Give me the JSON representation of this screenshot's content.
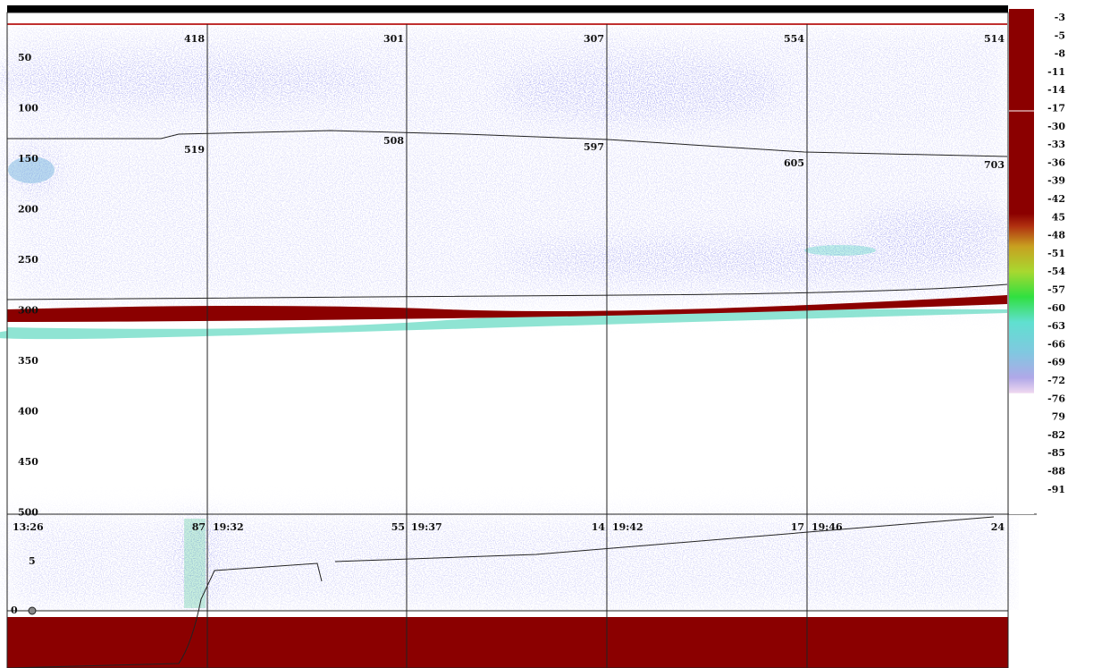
{
  "depth_axis": {
    "labels": [
      50,
      100,
      150,
      200,
      250,
      300,
      350,
      400,
      450,
      500
    ]
  },
  "color_scale": {
    "labels": [
      "-3",
      "-5",
      "-8",
      "-11",
      "-14",
      "-17",
      "-30",
      "-33",
      "-36",
      "-39",
      "-42",
      "45",
      "-48",
      "-51",
      "-54",
      "-57",
      "-60",
      "-63",
      "-66",
      "-69",
      "-72",
      "-76",
      "79",
      "-82",
      "-85",
      "-88",
      "-91"
    ]
  },
  "upper_panel": {
    "top_marks": [
      418,
      301,
      307,
      554,
      514
    ],
    "layer_marks": [
      519,
      508,
      597,
      605,
      703
    ]
  },
  "lower_panel": {
    "labels": [
      "13:26",
      "87",
      "19:32",
      "55",
      "19:37",
      "14",
      "19:42",
      "17",
      "19:46",
      "24"
    ],
    "axis_labels": [
      5,
      0
    ]
  }
}
